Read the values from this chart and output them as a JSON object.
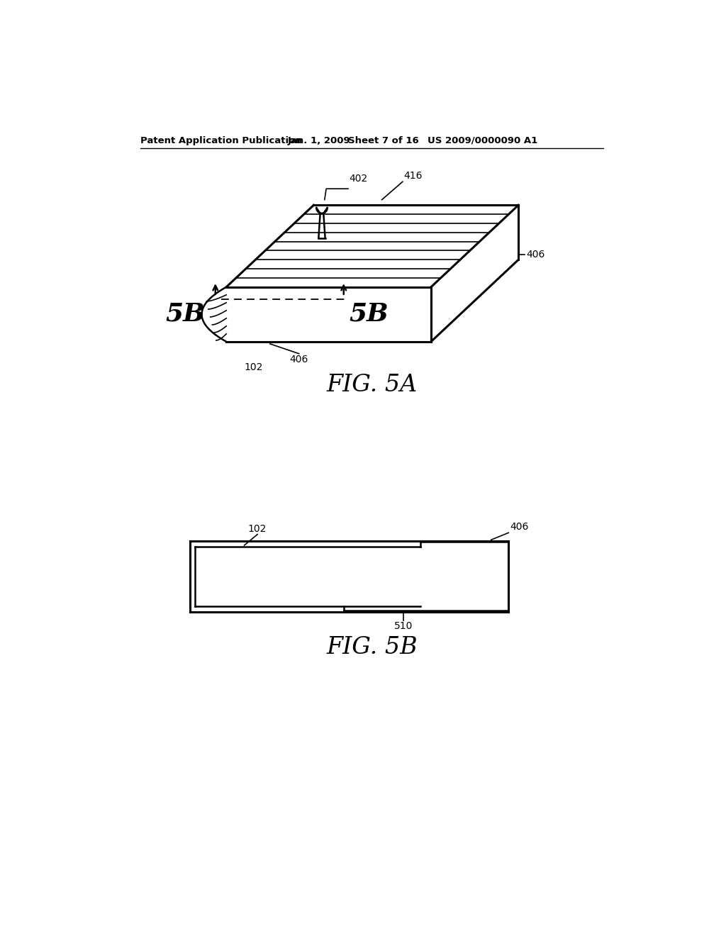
{
  "background_color": "#ffffff",
  "header_text": "Patent Application Publication",
  "header_date": "Jan. 1, 2009",
  "header_sheet": "Sheet 7 of 16",
  "header_patent": "US 2009/0000090 A1",
  "fig5a_title": "FIG. 5A",
  "fig5b_title": "FIG. 5B",
  "line_color": "#000000",
  "text_color": "#000000"
}
